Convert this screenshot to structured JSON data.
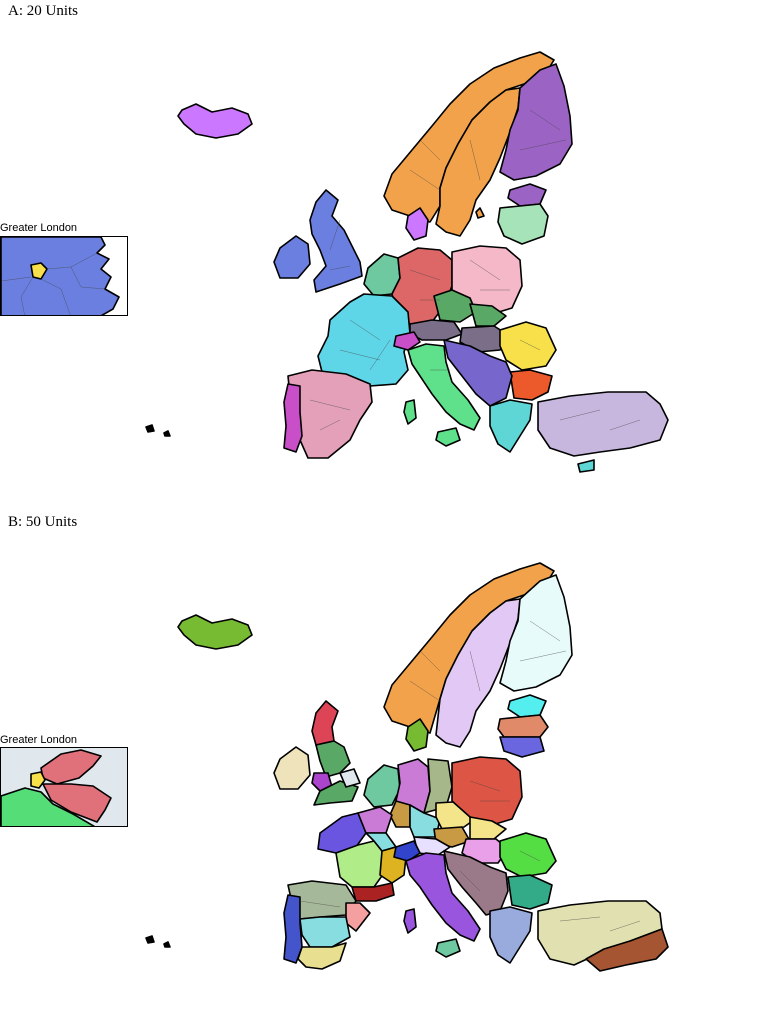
{
  "panels": [
    {
      "title": "A: 20 Units",
      "inset_label": "Greater London",
      "colors": {
        "iceland": "#cc77ff",
        "norway": "#f2a24a",
        "sweden": "#f2a24a",
        "finland": "#9a63c4",
        "estonia": "#9a63c4",
        "latvia": "#a6e3b8",
        "uk": "#6a7fe0",
        "ireland": "#6a7fe0",
        "denmark": "#cc77ff",
        "benelux": "#6ec9a0",
        "germany": "#dd6666",
        "poland": "#f4b8c8",
        "czech": "#5aa866",
        "france": "#5fd6e8",
        "swiss": "#c94fc9",
        "austria": "#7a6e88",
        "hungary": "#7a6e88",
        "slovakia": "#5aa866",
        "romania": "#f7e04a",
        "bulgaria": "#ec5a2c",
        "balkans": "#7766cc",
        "italy": "#5fe08a",
        "iberia": "#e3a0b8",
        "portugal": "#c94fc9",
        "greece": "#5fd6d6",
        "turkey": "#c7b7de",
        "cyprus": "#5fd6d6",
        "sardinia": "#5fe08a",
        "inset_main": "#6a7fe0",
        "inset_highlight": "#f7e04a",
        "inset_bg": "#ffffff"
      }
    },
    {
      "title": "B: 50 Units",
      "inset_label": "Greater London",
      "colors": {
        "iceland": "#77bb33",
        "norway": "#f2a24a",
        "sweden": "#e2c8f4",
        "finland": "#e8fbfb",
        "estonia": "#55eeee",
        "latvia": "#e08a6a",
        "lithuania": "#6a66e0",
        "uk": "#5aa866",
        "scotland": "#dd4455",
        "ireland": "#efe3bb",
        "wales": "#aa44cc",
        "denmark": "#77bb33",
        "benelux": "#6ec9a0",
        "germany": "#c97bd6",
        "germany2": "#a6b88a",
        "germany3": "#f4e48a",
        "poland": "#dd5544",
        "czech": "#c89a44",
        "france": "#b0ec88",
        "france_w": "#6a55e0",
        "france_s": "#aa2222",
        "france_e": "#ddb322",
        "swiss": "#3344cc",
        "austria": "#e8e0ff",
        "hungary": "#e9a0e9",
        "romania": "#55dd44",
        "bulgaria": "#33aa88",
        "balkans": "#9a7a88",
        "italy": "#9955dd",
        "iberia": "#a6b89a",
        "spain_e": "#f4a0a0",
        "spain_s": "#e8e090",
        "spain_c": "#88dde0",
        "portugal": "#4455cc",
        "greece": "#99aadd",
        "turkey": "#e0e0b0",
        "turkey_e": "#a65533",
        "sardinia": "#9955dd",
        "inset_main": "#e0e8ee",
        "inset_highlight": "#f7e04a",
        "inset_red": "#e0707a",
        "inset_green": "#55dd77",
        "inset_bg": "#ffffff"
      }
    }
  ]
}
